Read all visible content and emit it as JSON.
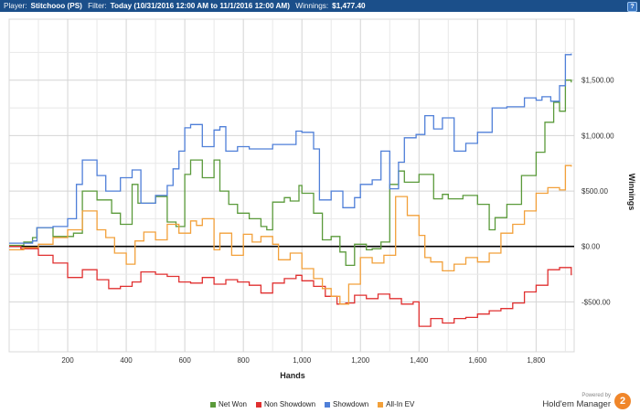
{
  "header": {
    "player_label": "Player:",
    "player": "Stitchooo (PS)",
    "filter_label": "Filter:",
    "filter": "Today (10/31/2016 12:00 AM to 11/1/2016 12:00 AM)",
    "winnings_label": "Winnings:",
    "winnings": "$1,477.40",
    "help_glyph": "?"
  },
  "branding": {
    "powered_by": "Powered by",
    "name": "Hold'em Manager",
    "badge": "2",
    "badge_color": "#f0862a"
  },
  "chart_data": {
    "type": "line",
    "xlabel": "Hands",
    "ylabel": "Winnings",
    "xlim": [
      0,
      1930
    ],
    "ylim": [
      -950,
      2050
    ],
    "x_ticks": [
      200,
      400,
      600,
      800,
      1000,
      1200,
      1400,
      1600,
      1800
    ],
    "x_tick_labels": [
      "200",
      "400",
      "600",
      "800",
      "1,000",
      "1,200",
      "1,400",
      "1,600",
      "1,800"
    ],
    "y_ticks": [
      1500,
      1000,
      500,
      0,
      -500
    ],
    "y_tick_labels": [
      "$1,500.00",
      "$1,000.00",
      "$500.00",
      "$0.00",
      "-$500.00"
    ],
    "grid": true,
    "legend_position": "bottom",
    "series": [
      {
        "name": "Net Won",
        "color": "#5a9a3a",
        "x": [
          0,
          50,
          80,
          95,
          150,
          220,
          250,
          300,
          350,
          380,
          420,
          440,
          500,
          540,
          570,
          600,
          620,
          660,
          700,
          720,
          750,
          780,
          820,
          860,
          880,
          900,
          940,
          960,
          990,
          1000,
          1040,
          1070,
          1100,
          1130,
          1150,
          1180,
          1220,
          1240,
          1270,
          1300,
          1330,
          1350,
          1400,
          1450,
          1480,
          1500,
          1550,
          1600,
          1640,
          1660,
          1700,
          1750,
          1800,
          1830,
          1860,
          1880,
          1900,
          1920
        ],
        "y": [
          10,
          40,
          80,
          170,
          90,
          120,
          500,
          420,
          300,
          200,
          560,
          390,
          450,
          220,
          180,
          650,
          780,
          620,
          780,
          500,
          380,
          300,
          250,
          180,
          150,
          400,
          440,
          410,
          550,
          480,
          300,
          60,
          90,
          -50,
          -170,
          20,
          -30,
          -20,
          40,
          560,
          680,
          580,
          650,
          430,
          470,
          430,
          460,
          380,
          150,
          260,
          380,
          640,
          850,
          1120,
          1300,
          1220,
          1500,
          1480
        ]
      },
      {
        "name": "Non Showdown",
        "color": "#e03030",
        "x": [
          0,
          40,
          100,
          150,
          200,
          250,
          300,
          340,
          380,
          420,
          450,
          500,
          540,
          580,
          620,
          660,
          700,
          740,
          780,
          820,
          860,
          900,
          940,
          980,
          1000,
          1040,
          1080,
          1120,
          1150,
          1180,
          1220,
          1260,
          1300,
          1340,
          1380,
          1400,
          1440,
          1480,
          1520,
          1560,
          1600,
          1640,
          1680,
          1720,
          1760,
          1800,
          1840,
          1880,
          1920
        ],
        "y": [
          0,
          -20,
          -80,
          -150,
          -280,
          -210,
          -300,
          -380,
          -360,
          -320,
          -230,
          -250,
          -270,
          -320,
          -330,
          -280,
          -340,
          -300,
          -320,
          -350,
          -420,
          -330,
          -290,
          -260,
          -310,
          -360,
          -450,
          -520,
          -510,
          -440,
          -470,
          -430,
          -470,
          -520,
          -500,
          -720,
          -650,
          -690,
          -650,
          -640,
          -610,
          -580,
          -560,
          -510,
          -410,
          -350,
          -210,
          -190,
          -260
        ]
      },
      {
        "name": "Showdown",
        "color": "#4f7fd8",
        "x": [
          0,
          80,
          95,
          150,
          200,
          230,
          250,
          300,
          330,
          380,
          420,
          450,
          500,
          540,
          560,
          580,
          600,
          620,
          660,
          700,
          720,
          740,
          780,
          820,
          860,
          900,
          940,
          980,
          1000,
          1040,
          1060,
          1100,
          1140,
          1180,
          1200,
          1240,
          1270,
          1300,
          1330,
          1350,
          1390,
          1420,
          1450,
          1480,
          1520,
          1560,
          1600,
          1650,
          1700,
          1760,
          1800,
          1820,
          1850,
          1880,
          1900,
          1920
        ],
        "y": [
          30,
          50,
          170,
          180,
          250,
          560,
          780,
          640,
          500,
          620,
          690,
          390,
          460,
          550,
          700,
          860,
          1070,
          1100,
          900,
          1050,
          1080,
          860,
          900,
          880,
          880,
          920,
          920,
          1040,
          1030,
          880,
          420,
          500,
          350,
          440,
          560,
          600,
          860,
          520,
          760,
          980,
          1010,
          1180,
          1060,
          1160,
          860,
          930,
          1030,
          1250,
          1260,
          1340,
          1320,
          1350,
          1310,
          1450,
          1730,
          1740
        ]
      },
      {
        "name": "All-In EV",
        "color": "#f2a03a",
        "x": [
          0,
          50,
          100,
          150,
          200,
          250,
          300,
          330,
          360,
          400,
          430,
          460,
          500,
          540,
          580,
          620,
          640,
          660,
          700,
          720,
          760,
          800,
          830,
          860,
          900,
          920,
          960,
          1000,
          1040,
          1070,
          1100,
          1130,
          1160,
          1200,
          1240,
          1280,
          1320,
          1360,
          1400,
          1420,
          1440,
          1480,
          1520,
          1560,
          1600,
          1640,
          1680,
          1720,
          1760,
          1800,
          1840,
          1880,
          1900,
          1920
        ],
        "y": [
          -30,
          -10,
          20,
          80,
          150,
          320,
          150,
          80,
          -60,
          -160,
          50,
          130,
          60,
          200,
          120,
          230,
          190,
          250,
          -30,
          120,
          -80,
          110,
          40,
          90,
          20,
          -120,
          -60,
          -200,
          -290,
          -380,
          -450,
          -520,
          -340,
          -100,
          -150,
          -80,
          450,
          280,
          100,
          -100,
          -140,
          -220,
          -160,
          -100,
          -140,
          -60,
          120,
          200,
          320,
          480,
          530,
          510,
          730,
          720
        ]
      }
    ]
  }
}
